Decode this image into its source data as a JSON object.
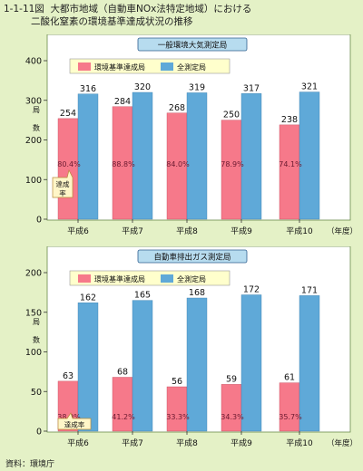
{
  "figure": {
    "number": "1-1-11図",
    "title_line1": "大都市地域（自動車NOx法特定地域）における",
    "title_line2": "二酸化窒素の環境基準達成状況の推移",
    "source": "資料：環境庁"
  },
  "colors": {
    "achieved": "#f6798a",
    "total": "#5fa9d8",
    "background": "#e4f1c6",
    "panel_bg": "#ffffff",
    "header_bg": "#b7dcef"
  },
  "chart_data": [
    {
      "type": "bar",
      "title": "一般環境大気測定局",
      "categories": [
        "平成6",
        "平成7",
        "平成8",
        "平成9",
        "平成10"
      ],
      "x_unit": "（年度）",
      "ylabel": "局数",
      "ylim": [
        0,
        400
      ],
      "yticks": [
        0,
        100,
        200,
        300,
        400
      ],
      "series": [
        {
          "name": "環境基準達成局",
          "values": [
            254,
            284,
            268,
            250,
            238
          ],
          "color": "#f6798a"
        },
        {
          "name": "全測定局",
          "values": [
            316,
            320,
            319,
            317,
            321
          ],
          "color": "#5fa9d8"
        }
      ],
      "rates": [
        "80.4%",
        "88.8%",
        "84.0%",
        "78.9%",
        "74.1%"
      ],
      "rate_callout": "達成率",
      "legend": "top-left",
      "grid": false
    },
    {
      "type": "bar",
      "title": "自動車排出ガス測定局",
      "categories": [
        "平成6",
        "平成7",
        "平成8",
        "平成9",
        "平成10"
      ],
      "x_unit": "（年度）",
      "ylabel": "局数",
      "ylim": [
        0,
        200
      ],
      "yticks": [
        0,
        50,
        100,
        150,
        200
      ],
      "series": [
        {
          "name": "環境基準達成局",
          "values": [
            63,
            68,
            56,
            59,
            61
          ],
          "color": "#f6798a"
        },
        {
          "name": "全測定局",
          "values": [
            162,
            165,
            168,
            172,
            171
          ],
          "color": "#5fa9d8"
        }
      ],
      "rates": [
        "38.9%",
        "41.2%",
        "33.3%",
        "34.3%",
        "35.7%"
      ],
      "rate_callout": "達成率",
      "legend": "top-left",
      "grid": false
    }
  ]
}
